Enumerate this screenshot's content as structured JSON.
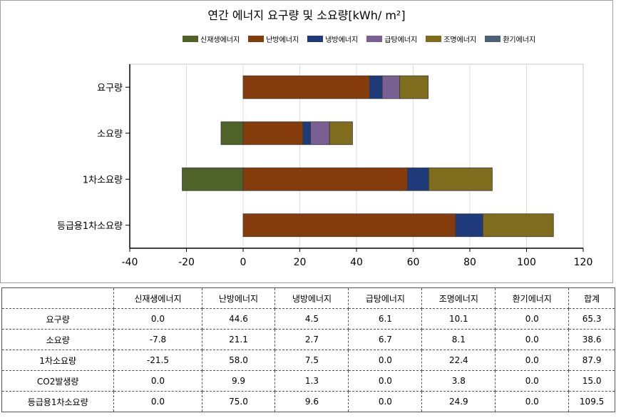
{
  "chart_data": {
    "type": "bar",
    "orientation": "horizontal",
    "stacked": true,
    "title": "연간 에너지 요구량 및 소요량[kWh/ m²]",
    "categories": [
      "요구량",
      "소요량",
      "1차소요량",
      "등급용1차소요량"
    ],
    "series": [
      {
        "name": "신재생에너지",
        "color": "#4f6228",
        "values": [
          0.0,
          -7.8,
          -21.5,
          0.0
        ]
      },
      {
        "name": "난방에너지",
        "color": "#843c0c",
        "values": [
          44.6,
          21.1,
          58.0,
          75.0
        ]
      },
      {
        "name": "냉방에너지",
        "color": "#1f3a7a",
        "values": [
          4.5,
          2.7,
          7.5,
          9.6
        ]
      },
      {
        "name": "급탕에너지",
        "color": "#7a5f93",
        "values": [
          6.1,
          6.7,
          0.0,
          0.0
        ]
      },
      {
        "name": "조명에너지",
        "color": "#7f6c1c",
        "values": [
          10.1,
          8.1,
          22.4,
          24.9
        ]
      },
      {
        "name": "환기에너지",
        "color": "#4a6178",
        "values": [
          0.0,
          0.0,
          0.0,
          0.0
        ]
      }
    ],
    "xlim": [
      -40,
      120
    ],
    "xticks": [
      -40,
      -20,
      0,
      20,
      40,
      60,
      80,
      100,
      120
    ],
    "grid": true,
    "legend_position": "top"
  },
  "table": {
    "headers": [
      "",
      "신재생에너지",
      "난방에너지",
      "냉방에너지",
      "급탕에너지",
      "조명에너지",
      "환기에너지",
      "합계"
    ],
    "rows": [
      [
        "요구량",
        "0.0",
        "44.6",
        "4.5",
        "6.1",
        "10.1",
        "0.0",
        "65.3"
      ],
      [
        "소요량",
        "-7.8",
        "21.1",
        "2.7",
        "6.7",
        "8.1",
        "0.0",
        "38.6"
      ],
      [
        "1차소요량",
        "-21.5",
        "58.0",
        "7.5",
        "0.0",
        "22.4",
        "0.0",
        "87.9"
      ],
      [
        "CO2발생량",
        "0.0",
        "9.9",
        "1.3",
        "0.0",
        "3.8",
        "0.0",
        "15.0"
      ],
      [
        "등급용1차소요량",
        "0.0",
        "75.0",
        "9.6",
        "0.0",
        "24.9",
        "0.0",
        "109.5"
      ]
    ]
  }
}
